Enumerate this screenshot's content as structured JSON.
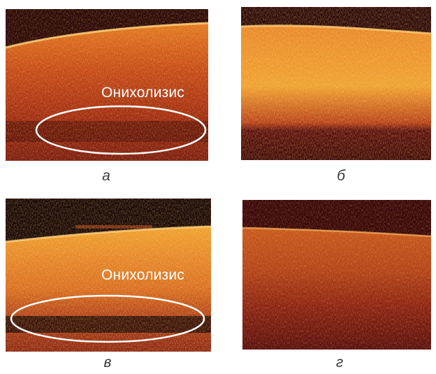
{
  "panels": [
    {
      "id": "a",
      "caption": "а",
      "annotation": "Онихолизис"
    },
    {
      "id": "b",
      "caption": "б",
      "annotation": ""
    },
    {
      "id": "v",
      "caption": "в",
      "annotation": "Онихолизис"
    },
    {
      "id": "g",
      "caption": "г",
      "annotation": ""
    }
  ],
  "colors": {
    "dark": "#2a0608",
    "mid": "#b33412",
    "bright": "#f39a2a",
    "highlight": "#ffd766",
    "annotation": "#ffffff",
    "caption": "#3a3a3a"
  }
}
